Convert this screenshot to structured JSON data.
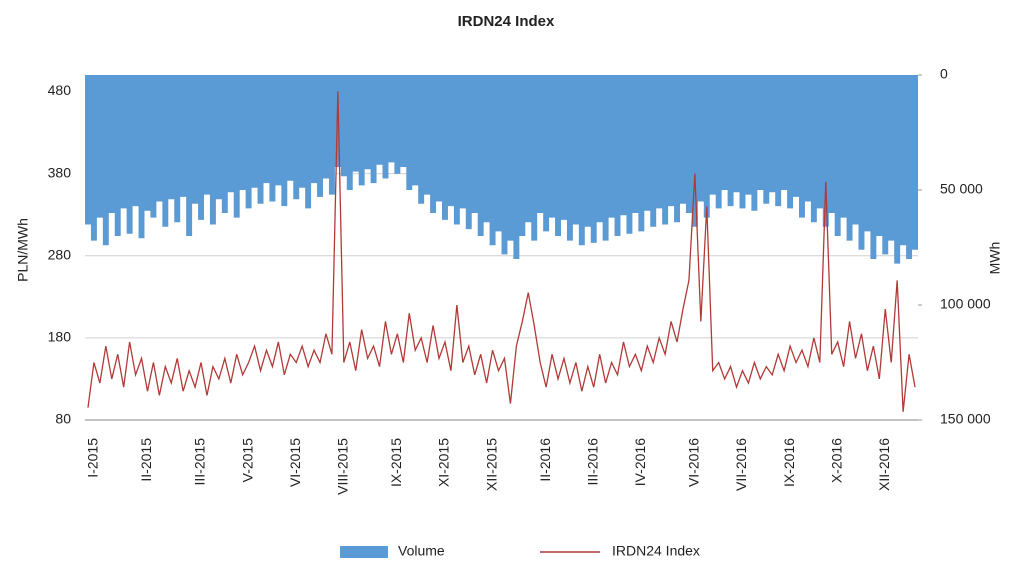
{
  "chart_data": {
    "type": "area_line",
    "title": "IRDN24 Index",
    "ylabel": "PLN/MWh",
    "y2label": "MWh",
    "categories": [
      null,
      "I-2015",
      null,
      null,
      null,
      null,
      null,
      null,
      null,
      null,
      "II-2015",
      null,
      null,
      null,
      null,
      null,
      null,
      null,
      null,
      "III-2015",
      null,
      null,
      null,
      null,
      null,
      null,
      null,
      "V-2015",
      null,
      null,
      null,
      null,
      null,
      null,
      null,
      "VI-2015",
      null,
      null,
      null,
      null,
      null,
      null,
      null,
      "VIII-2015",
      null,
      null,
      null,
      null,
      null,
      null,
      null,
      null,
      "IX-2015",
      null,
      null,
      null,
      null,
      null,
      null,
      null,
      "XI-2015",
      null,
      null,
      null,
      null,
      null,
      null,
      null,
      "XII-2015",
      null,
      null,
      null,
      null,
      null,
      null,
      null,
      null,
      "II-2016",
      null,
      null,
      null,
      null,
      null,
      null,
      null,
      "III-2016",
      null,
      null,
      null,
      null,
      null,
      null,
      null,
      "IV-2016",
      null,
      null,
      null,
      null,
      null,
      null,
      null,
      null,
      "VI-2016",
      null,
      null,
      null,
      null,
      null,
      null,
      null,
      "VII-2016",
      null,
      null,
      null,
      null,
      null,
      null,
      null,
      "IX-2016",
      null,
      null,
      null,
      null,
      null,
      null,
      null,
      "X-2016",
      null,
      null,
      null,
      null,
      null,
      null,
      null,
      "XII-2016",
      null,
      null,
      null,
      null,
      null
    ],
    "series": [
      {
        "name": "Volume",
        "color": "#5b9bd5",
        "axis": "y2",
        "values": [
          65000,
          72000,
          62000,
          74000,
          60000,
          70000,
          58000,
          69000,
          57000,
          71000,
          59000,
          62000,
          55000,
          66000,
          54000,
          64000,
          53000,
          70000,
          56000,
          63000,
          52000,
          65000,
          54000,
          60000,
          51000,
          62000,
          50000,
          58000,
          49000,
          56000,
          47000,
          55000,
          48000,
          57000,
          46000,
          54000,
          49000,
          58000,
          47000,
          53000,
          45000,
          52000,
          40000,
          44000,
          50000,
          42000,
          48000,
          41000,
          47000,
          39000,
          45000,
          38000,
          43000,
          40000,
          50000,
          48000,
          56000,
          52000,
          60000,
          55000,
          63000,
          57000,
          65000,
          58000,
          67000,
          60000,
          70000,
          64000,
          74000,
          68000,
          78000,
          72000,
          80000,
          70000,
          64000,
          72000,
          60000,
          68000,
          62000,
          70000,
          63000,
          72000,
          65000,
          74000,
          66000,
          73000,
          64000,
          72000,
          62000,
          70000,
          61000,
          69000,
          60000,
          68000,
          59000,
          66000,
          58000,
          65000,
          57000,
          64000,
          56000,
          60000,
          66000,
          55000,
          62000,
          52000,
          58000,
          50000,
          57000,
          51000,
          58000,
          52000,
          59000,
          50000,
          56000,
          51000,
          57000,
          50000,
          58000,
          53000,
          62000,
          55000,
          64000,
          58000,
          66000,
          60000,
          70000,
          62000,
          72000,
          65000,
          76000,
          68000,
          80000,
          70000,
          78000,
          72000,
          82000,
          74000,
          80000,
          76000
        ]
      },
      {
        "name": "IRDN24 Index",
        "color": "#b03a37",
        "axis": "y",
        "values": [
          95,
          150,
          125,
          170,
          130,
          160,
          120,
          175,
          135,
          155,
          115,
          150,
          110,
          145,
          125,
          155,
          115,
          140,
          120,
          150,
          110,
          145,
          130,
          155,
          125,
          160,
          135,
          150,
          170,
          140,
          165,
          145,
          175,
          135,
          160,
          150,
          170,
          145,
          165,
          150,
          185,
          160,
          480,
          150,
          175,
          140,
          190,
          155,
          170,
          145,
          200,
          160,
          185,
          150,
          210,
          165,
          180,
          150,
          195,
          155,
          175,
          140,
          220,
          150,
          170,
          135,
          160,
          125,
          165,
          140,
          155,
          100,
          170,
          200,
          235,
          195,
          150,
          120,
          160,
          130,
          155,
          125,
          150,
          115,
          145,
          120,
          160,
          125,
          150,
          135,
          175,
          145,
          160,
          140,
          170,
          150,
          180,
          160,
          200,
          175,
          215,
          250,
          380,
          200,
          340,
          140,
          150,
          130,
          145,
          120,
          140,
          125,
          150,
          130,
          145,
          135,
          160,
          140,
          170,
          150,
          165,
          145,
          180,
          150,
          370,
          160,
          175,
          145,
          200,
          155,
          185,
          140,
          170,
          130,
          215,
          150,
          250,
          90,
          160,
          120
        ]
      }
    ],
    "ylim": [
      80,
      500
    ],
    "yticks": [
      80,
      180,
      280,
      380,
      480
    ],
    "y2lim": [
      0,
      150000
    ],
    "y2ticks": [
      0,
      {
        "value": 50000,
        "label": "50 000"
      },
      {
        "value": 100000,
        "label": "100 000"
      },
      {
        "value": 150000,
        "label": "150 000"
      }
    ],
    "grid": true,
    "legend": "bottom"
  }
}
